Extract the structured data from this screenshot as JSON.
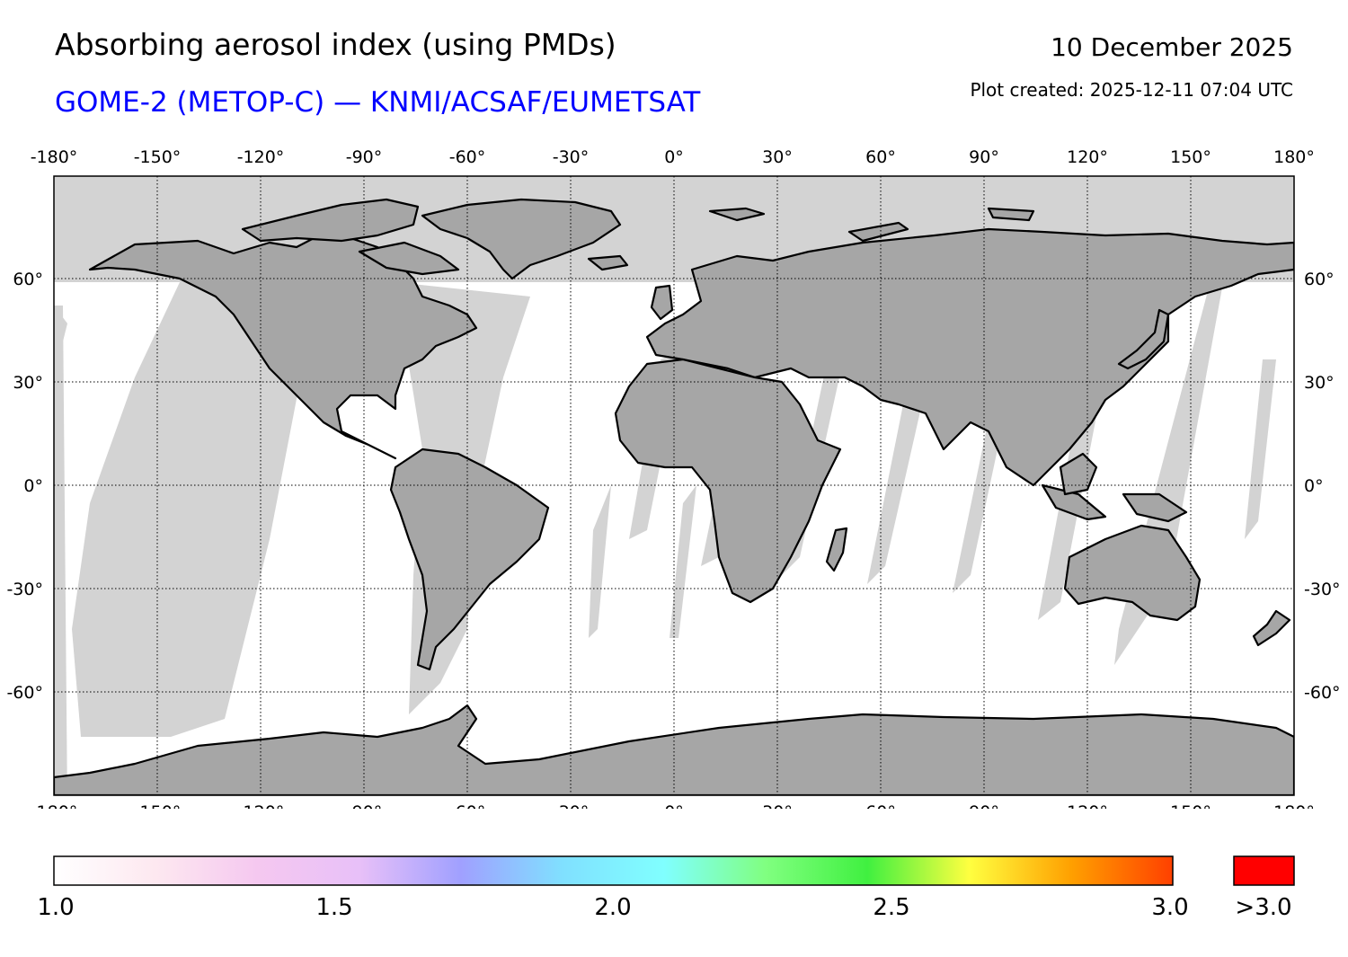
{
  "header": {
    "title": "Absorbing aerosol index (using PMDs)",
    "subtitle": "GOME-2 (METOP-C) — KNMI/ACSAF/EUMETSAT",
    "date": "10 December 2025",
    "plot_created": "Plot created: 2025-12-11 07:04 UTC"
  },
  "map": {
    "lon_ticks": [
      "-180°",
      "-150°",
      "-120°",
      "-90°",
      "-60°",
      "-30°",
      "0°",
      "30°",
      "60°",
      "90°",
      "120°",
      "150°",
      "180°"
    ],
    "lat_ticks": [
      "60°",
      "30°",
      "0°",
      "-30°",
      "-60°"
    ],
    "colors": {
      "no_data": "#d3d3d3",
      "polar_night": "#d3d3d3",
      "land_shade": "#a6a6a6",
      "coast": "#000000"
    }
  },
  "colorbar": {
    "labels": [
      "1.0",
      "1.5",
      "2.0",
      "2.5",
      "3.0"
    ],
    "over_label": ">3.0",
    "over_color": "#ff0000",
    "stops": [
      "#ffffff",
      "#fde8f0",
      "#f5c8f0",
      "#e8c0f8",
      "#a0a0ff",
      "#80e0ff",
      "#80ffff",
      "#80ff80",
      "#40f040",
      "#ffff40",
      "#ffa000",
      "#ff4000"
    ]
  }
}
